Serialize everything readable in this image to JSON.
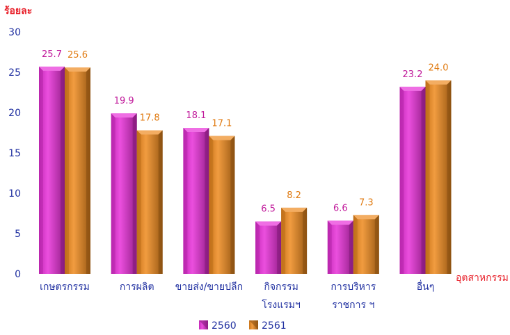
{
  "chart_data": {
    "type": "bar",
    "ylabel": "ร้อยละ",
    "xlabel": "อุตสาหกรรม",
    "ylim": [
      0,
      30
    ],
    "yticks": [
      0,
      5,
      10,
      15,
      20,
      25,
      30
    ],
    "categories": [
      [
        "เกษตรกรรม"
      ],
      [
        "การผลิต"
      ],
      [
        "ขายส่ง/ขายปลีก"
      ],
      [
        "กิจกรรม",
        "โรงแรมฯ"
      ],
      [
        "การบริหาร",
        "ราชการ ฯ"
      ],
      [
        "อื่นๆ"
      ]
    ],
    "series": [
      {
        "name": "2560",
        "values": [
          25.7,
          19.9,
          18.1,
          6.5,
          6.6,
          23.2
        ],
        "color": "#e830d8",
        "label_color": "#c0189a"
      },
      {
        "name": "2561",
        "values": [
          25.6,
          17.8,
          17.1,
          8.2,
          7.3,
          24.0
        ],
        "color": "#ee8a1e",
        "label_color": "#e07a10"
      }
    ],
    "grid": false,
    "legend_position": "bottom"
  }
}
